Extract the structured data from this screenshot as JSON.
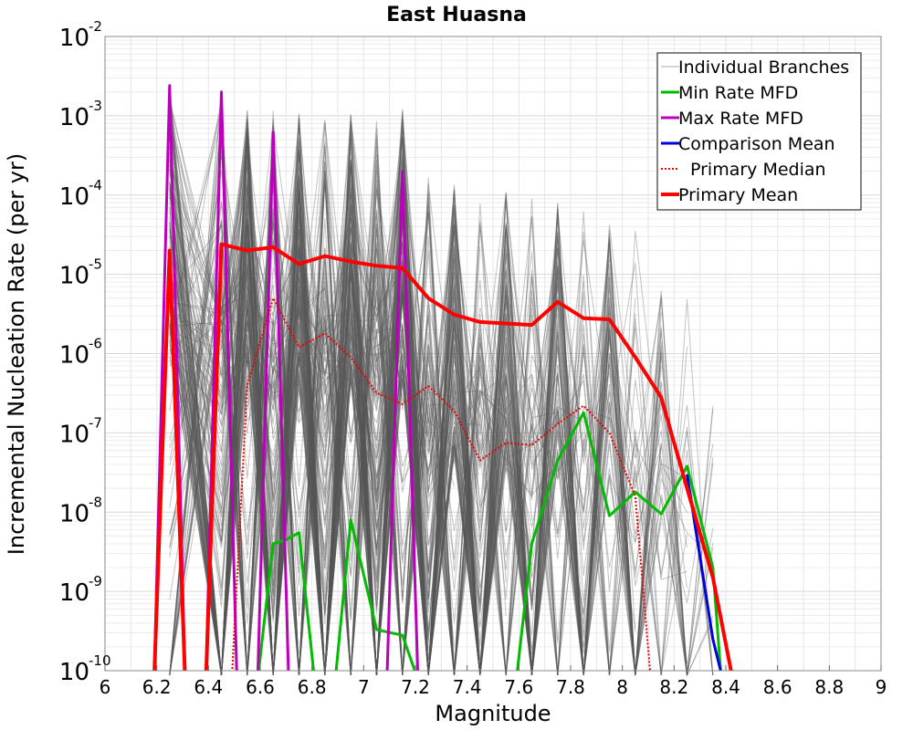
{
  "chart_data": {
    "type": "line",
    "title": "East Huasna",
    "xlabel": "Magnitude",
    "ylabel": "Incremental Nucleation Rate (per yr)",
    "xlim": [
      6,
      9
    ],
    "ylim": [
      1e-10,
      0.01
    ],
    "y_scale": "log",
    "x_ticks": [
      "6",
      "6.2",
      "6.4",
      "6.6",
      "6.8",
      "7",
      "7.2",
      "7.4",
      "7.6",
      "7.8",
      "8",
      "8.2",
      "8.4",
      "8.6",
      "8.8",
      "9"
    ],
    "y_ticks": [
      {
        "base": "10",
        "exp": "-2"
      },
      {
        "base": "10",
        "exp": "-3"
      },
      {
        "base": "10",
        "exp": "-4"
      },
      {
        "base": "10",
        "exp": "-5"
      },
      {
        "base": "10",
        "exp": "-6"
      },
      {
        "base": "10",
        "exp": "-7"
      },
      {
        "base": "10",
        "exp": "-8"
      },
      {
        "base": "10",
        "exp": "-9"
      },
      {
        "base": "10",
        "exp": "-10"
      }
    ],
    "grid": true,
    "legend_position": "top-right",
    "legend": [
      {
        "label": "Individual Branches",
        "color": "#aaaaaa",
        "style": "thin"
      },
      {
        "label": "Min Rate MFD",
        "color": "#00bb00",
        "style": "solid"
      },
      {
        "label": "Max Rate MFD",
        "color": "#bb00bb",
        "style": "solid"
      },
      {
        "label": "Comparison Mean",
        "color": "#0000dd",
        "style": "solid"
      },
      {
        "label": "Primary Median",
        "color": "#ee0000",
        "style": "dotted"
      },
      {
        "label": "Primary Mean",
        "color": "#ff0000",
        "style": "thick"
      }
    ],
    "series": [
      {
        "name": "Individual Branches",
        "color": "#555555",
        "envelope": [
          [
            6.25,
            0.0024
          ],
          [
            6.45,
            0.002
          ],
          [
            6.55,
            0.0012
          ],
          [
            6.65,
            0.0012
          ],
          [
            6.75,
            0.0011
          ],
          [
            6.85,
            0.0011
          ],
          [
            6.95,
            0.0011
          ],
          [
            7.05,
            0.0012
          ],
          [
            7.15,
            0.0013
          ],
          [
            7.25,
            0.0002
          ],
          [
            7.35,
            0.00015
          ],
          [
            7.45,
            0.00012
          ],
          [
            7.55,
            0.00011
          ],
          [
            7.65,
            0.0001
          ],
          [
            7.75,
            0.0001
          ],
          [
            7.85,
            8e-05
          ],
          [
            7.95,
            7e-05
          ],
          [
            8.05,
            4e-05
          ],
          [
            8.15,
            1.5e-05
          ],
          [
            8.25,
            5e-06
          ],
          [
            8.35,
            5e-07
          ],
          [
            8.45,
            4e-07
          ]
        ]
      },
      {
        "name": "Min Rate MFD",
        "color": "#00bb00",
        "points": [
          [
            6.65,
            4e-09
          ],
          [
            6.7,
            4.5e-09
          ],
          [
            6.75,
            5.5e-09
          ],
          [
            6.95,
            8e-09
          ],
          [
            7.05,
            3.3e-10
          ],
          [
            7.15,
            2.8e-10
          ],
          [
            7.65,
            4e-09
          ],
          [
            7.75,
            4.5e-08
          ],
          [
            7.85,
            1.8e-07
          ],
          [
            7.95,
            9e-09
          ],
          [
            8.05,
            1.8e-08
          ],
          [
            8.15,
            9.5e-09
          ],
          [
            8.25,
            3.8e-08
          ],
          [
            8.35,
            2e-09
          ],
          [
            8.38,
            1e-10
          ]
        ]
      },
      {
        "name": "Max Rate MFD",
        "color": "#bb00bb",
        "points": [
          [
            6.25,
            0.0024
          ],
          [
            6.45,
            0.002
          ],
          [
            6.65,
            0.00062
          ],
          [
            7.15,
            0.0002
          ]
        ]
      },
      {
        "name": "Comparison Mean",
        "color": "#0000dd",
        "points": [
          [
            8.25,
            3e-08
          ],
          [
            8.35,
            2.5e-10
          ],
          [
            8.38,
            1e-10
          ]
        ]
      },
      {
        "name": "Primary Median",
        "color": "#ee0000",
        "points": [
          [
            6.55,
            4e-07
          ],
          [
            6.65,
            5e-06
          ],
          [
            6.75,
            1.2e-06
          ],
          [
            6.85,
            1.8e-06
          ],
          [
            6.95,
            9e-07
          ],
          [
            7.05,
            3.2e-07
          ],
          [
            7.15,
            2.3e-07
          ],
          [
            7.25,
            3.9e-07
          ],
          [
            7.35,
            1.9e-07
          ],
          [
            7.45,
            4.5e-08
          ],
          [
            7.55,
            7.5e-08
          ],
          [
            7.65,
            7e-08
          ],
          [
            7.75,
            1.3e-07
          ],
          [
            7.85,
            2.2e-07
          ],
          [
            7.95,
            1e-07
          ],
          [
            8.05,
            1.6e-08
          ]
        ]
      },
      {
        "name": "Primary Mean",
        "color": "#ff0000",
        "points": [
          [
            6.25,
            2e-05
          ],
          [
            6.45,
            2.4e-05
          ],
          [
            6.55,
            2e-05
          ],
          [
            6.65,
            2.2e-05
          ],
          [
            6.75,
            1.35e-05
          ],
          [
            6.85,
            1.7e-05
          ],
          [
            6.95,
            1.45e-05
          ],
          [
            7.05,
            1.28e-05
          ],
          [
            7.15,
            1.2e-05
          ],
          [
            7.25,
            5e-06
          ],
          [
            7.35,
            3.1e-06
          ],
          [
            7.45,
            2.5e-06
          ],
          [
            7.55,
            2.4e-06
          ],
          [
            7.65,
            2.3e-06
          ],
          [
            7.75,
            4.5e-06
          ],
          [
            7.85,
            2.8e-06
          ],
          [
            7.95,
            2.7e-06
          ],
          [
            8.05,
            9e-07
          ],
          [
            8.15,
            2.8e-07
          ],
          [
            8.25,
            2e-08
          ],
          [
            8.35,
            1.5e-09
          ],
          [
            8.42,
            1e-10
          ]
        ]
      }
    ]
  }
}
